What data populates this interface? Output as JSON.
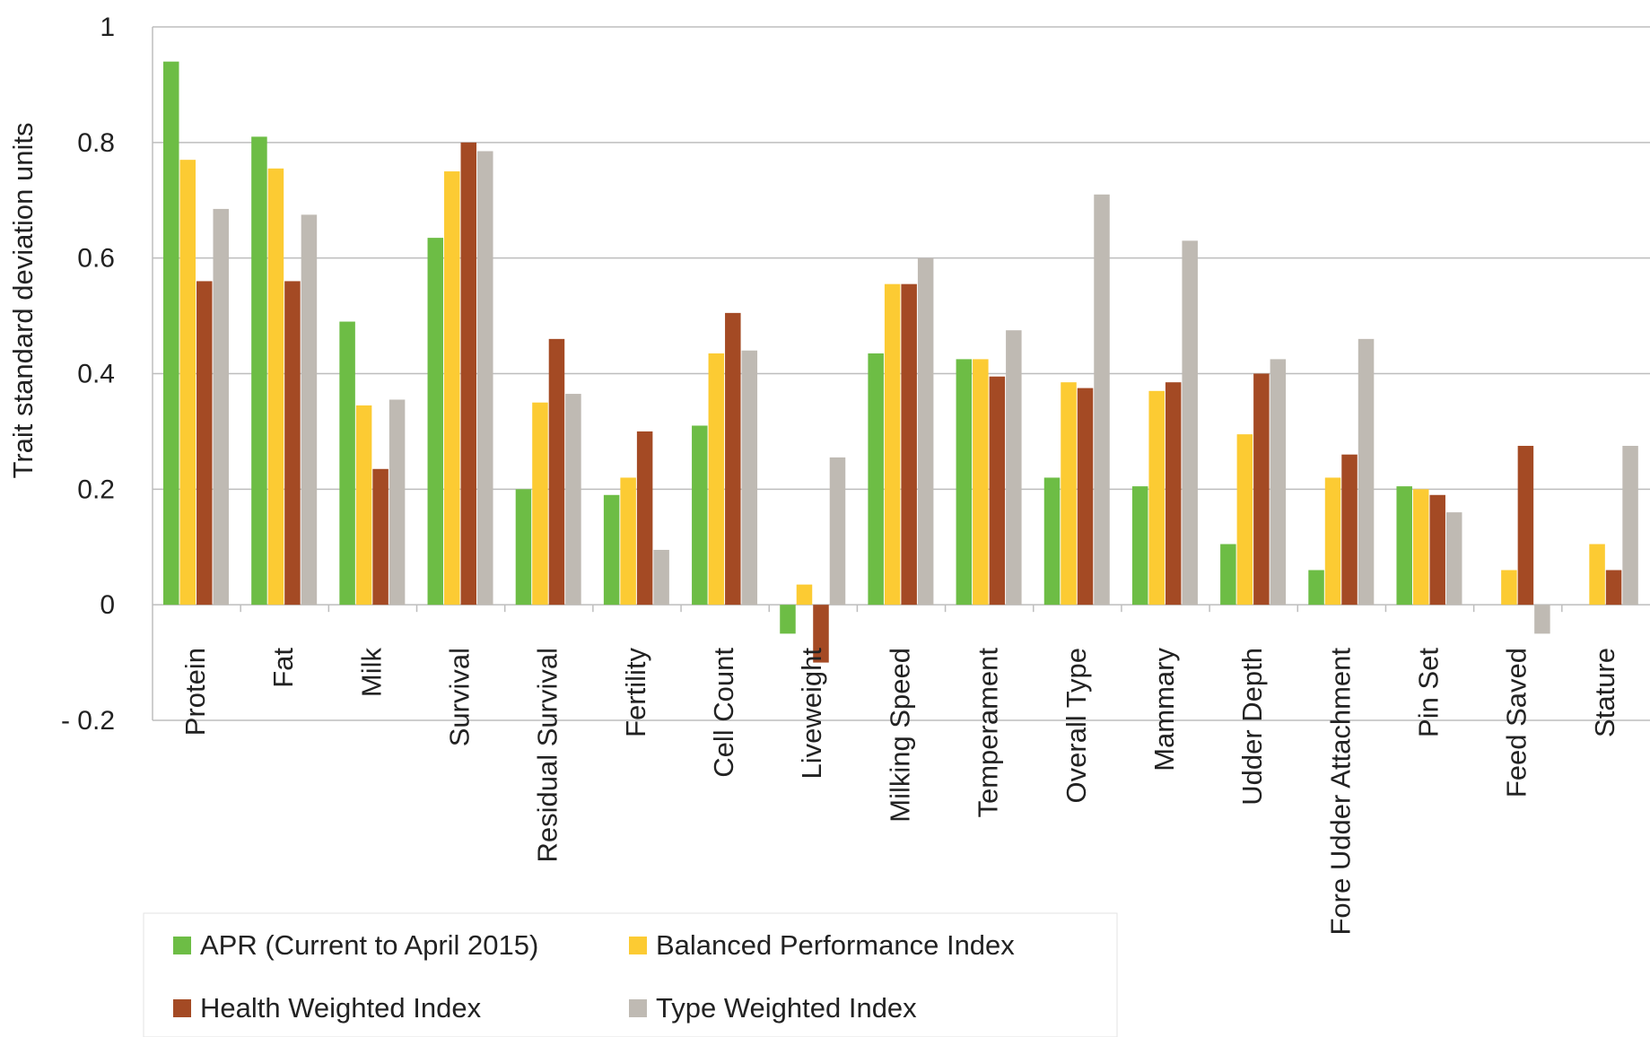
{
  "chart_data": {
    "type": "bar",
    "ylabel": "Trait standard deviation units",
    "ylim": [
      -0.2,
      1
    ],
    "yticks": [
      1,
      0.8,
      0.6,
      0.4,
      0.2,
      0,
      -0.2
    ],
    "ytick_labels": [
      "1",
      "0.8",
      "0.6",
      "0.4",
      "0.2",
      "0",
      "- 0.2"
    ],
    "grid": true,
    "legend_position": "bottom-left",
    "categories": [
      "Protein",
      "Fat",
      "Milk",
      "Survival",
      "Residual Survival",
      "Fertility",
      "Cell Count",
      "Liveweight",
      "Milking Speed",
      "Temperament",
      "Overall Type",
      "Mammary",
      "Udder Depth",
      "Fore Udder Attachment",
      "Pin Set",
      "Feed Saved",
      "Stature"
    ],
    "series": [
      {
        "name": "APR (Current to April 2015)",
        "color": "#6dbd45",
        "values": [
          0.94,
          0.81,
          0.49,
          0.635,
          0.2,
          0.19,
          0.31,
          -0.05,
          0.435,
          0.425,
          0.22,
          0.205,
          0.105,
          0.06,
          0.205,
          0,
          0
        ]
      },
      {
        "name": "Balanced Performance Index",
        "color": "#fccb33",
        "values": [
          0.77,
          0.755,
          0.345,
          0.75,
          0.35,
          0.22,
          0.435,
          0.035,
          0.555,
          0.425,
          0.385,
          0.37,
          0.295,
          0.22,
          0.2,
          0.06,
          0.105
        ]
      },
      {
        "name": "Health Weighted Index",
        "color": "#a44a24",
        "values": [
          0.56,
          0.56,
          0.235,
          0.8,
          0.46,
          0.3,
          0.505,
          -0.1,
          0.555,
          0.395,
          0.375,
          0.385,
          0.4,
          0.26,
          0.19,
          0.275,
          0.06
        ]
      },
      {
        "name": "Type Weighted Index",
        "color": "#bfbab3",
        "values": [
          0.685,
          0.675,
          0.355,
          0.785,
          0.365,
          0.095,
          0.44,
          0.255,
          0.6,
          0.475,
          0.71,
          0.63,
          0.425,
          0.46,
          0.16,
          -0.05,
          0.275
        ]
      }
    ]
  }
}
